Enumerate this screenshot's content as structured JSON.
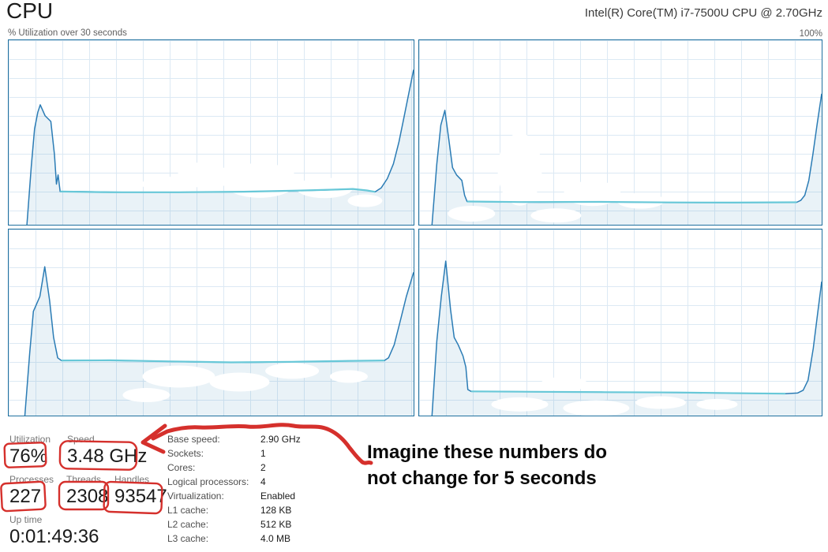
{
  "header": {
    "title": "CPU",
    "cpu_model": "Intel(R) Core(TM) i7-7500U CPU @ 2.70GHz"
  },
  "graphs": {
    "axis_label": "% Utilization over 30 seconds",
    "max_label": "100%"
  },
  "chart_data": [
    {
      "type": "area",
      "title": "logical processor 1 utilization",
      "x_window_seconds": 30,
      "ylim": [
        0,
        100
      ],
      "grid": true,
      "points": [
        [
          4.5,
          0
        ],
        [
          5.6,
          32
        ],
        [
          6.4,
          52
        ],
        [
          7.2,
          61
        ],
        [
          7.8,
          65
        ],
        [
          9.0,
          59
        ],
        [
          10.4,
          56
        ],
        [
          11.3,
          38
        ],
        [
          11.8,
          22
        ],
        [
          12.2,
          27
        ],
        [
          12.7,
          18
        ],
        [
          17,
          18
        ],
        [
          28,
          17.6
        ],
        [
          42,
          17.6
        ],
        [
          56,
          17.8
        ],
        [
          68,
          18.3
        ],
        [
          78,
          18.8
        ],
        [
          85,
          19.4
        ],
        [
          88.5,
          18.6
        ],
        [
          90.5,
          17.8
        ],
        [
          92,
          20
        ],
        [
          93.5,
          25
        ],
        [
          95,
          33
        ],
        [
          96.4,
          45
        ],
        [
          97.6,
          58
        ],
        [
          98.8,
          71
        ],
        [
          100,
          84
        ]
      ],
      "cyan_points": [
        [
          12.7,
          18
        ],
        [
          25,
          17.6
        ],
        [
          42,
          17.6
        ],
        [
          58,
          17.9
        ],
        [
          70,
          18.4
        ],
        [
          80,
          19
        ],
        [
          85,
          19.4
        ],
        [
          88.5,
          18.6
        ],
        [
          90.5,
          17.8
        ]
      ],
      "smudges": [
        [
          62,
          24,
          48,
          22
        ],
        [
          78,
          20,
          36,
          13
        ],
        [
          48,
          27,
          32,
          16
        ],
        [
          88,
          13,
          22,
          8
        ],
        [
          38,
          22,
          26,
          10
        ]
      ]
    },
    {
      "type": "area",
      "title": "logical processor 2 utilization",
      "x_window_seconds": 30,
      "ylim": [
        0,
        100
      ],
      "grid": true,
      "points": [
        [
          3.2,
          0
        ],
        [
          4.4,
          33
        ],
        [
          5.4,
          54
        ],
        [
          6.4,
          62
        ],
        [
          7.5,
          44
        ],
        [
          8.3,
          31
        ],
        [
          9.3,
          27
        ],
        [
          10.6,
          24
        ],
        [
          11.3,
          16
        ],
        [
          11.9,
          12.6
        ],
        [
          18,
          12.4
        ],
        [
          30,
          12.2
        ],
        [
          45,
          12.4
        ],
        [
          60,
          12.1
        ],
        [
          75,
          12.0
        ],
        [
          87,
          12.1
        ],
        [
          93.8,
          12.2
        ],
        [
          94.8,
          13.2
        ],
        [
          95.8,
          16
        ],
        [
          96.8,
          24
        ],
        [
          97.8,
          38
        ],
        [
          98.9,
          55
        ],
        [
          100,
          71
        ]
      ],
      "cyan_points": [
        [
          11.9,
          12.6
        ],
        [
          25,
          12.3
        ],
        [
          45,
          12.4
        ],
        [
          62,
          12.1
        ],
        [
          78,
          12.0
        ],
        [
          93.8,
          12.2
        ]
      ],
      "smudges": [
        [
          25,
          30,
          28,
          46
        ],
        [
          43,
          17,
          36,
          16
        ],
        [
          13,
          6,
          30,
          10
        ],
        [
          34,
          5,
          32,
          9
        ],
        [
          55,
          13,
          30,
          10
        ]
      ]
    },
    {
      "type": "area",
      "title": "logical processor 3 utilization",
      "x_window_seconds": 30,
      "ylim": [
        0,
        100
      ],
      "grid": true,
      "points": [
        [
          4.0,
          0
        ],
        [
          5.2,
          34
        ],
        [
          6.1,
          56
        ],
        [
          6.9,
          60
        ],
        [
          7.7,
          64
        ],
        [
          8.9,
          80
        ],
        [
          10.1,
          62
        ],
        [
          11.1,
          42
        ],
        [
          12.1,
          31
        ],
        [
          13.0,
          29.6
        ],
        [
          20,
          29.8
        ],
        [
          32,
          29.4
        ],
        [
          46,
          28.8
        ],
        [
          58,
          28.5
        ],
        [
          72,
          29.0
        ],
        [
          84,
          29.4
        ],
        [
          92.8,
          29.6
        ],
        [
          93.8,
          31
        ],
        [
          95.2,
          38
        ],
        [
          96.6,
          50
        ],
        [
          98.2,
          64
        ],
        [
          100,
          77
        ]
      ],
      "cyan_points": [
        [
          13.0,
          29.6
        ],
        [
          25,
          29.7
        ],
        [
          40,
          29.1
        ],
        [
          55,
          28.6
        ],
        [
          70,
          28.9
        ],
        [
          85,
          29.4
        ],
        [
          92.8,
          29.6
        ]
      ],
      "smudges": [
        [
          42,
          21,
          46,
          14
        ],
        [
          57,
          18,
          38,
          12
        ],
        [
          70,
          24,
          34,
          10
        ],
        [
          34,
          11,
          30,
          9
        ],
        [
          84,
          21,
          24,
          8
        ]
      ]
    },
    {
      "type": "area",
      "title": "logical processor 4 utilization",
      "x_window_seconds": 30,
      "ylim": [
        0,
        100
      ],
      "grid": true,
      "points": [
        [
          3.2,
          0
        ],
        [
          4.4,
          40
        ],
        [
          5.5,
          64
        ],
        [
          6.6,
          83
        ],
        [
          7.8,
          57
        ],
        [
          8.7,
          42
        ],
        [
          9.7,
          38
        ],
        [
          10.9,
          32
        ],
        [
          11.6,
          26
        ],
        [
          12.1,
          14
        ],
        [
          12.9,
          13.0
        ],
        [
          22,
          12.9
        ],
        [
          36,
          12.7
        ],
        [
          52,
          12.5
        ],
        [
          68,
          12.3
        ],
        [
          82,
          12.0
        ],
        [
          91,
          11.8
        ],
        [
          94,
          12.1
        ],
        [
          95.4,
          13.6
        ],
        [
          96.6,
          19
        ],
        [
          97.9,
          36
        ],
        [
          99.0,
          55
        ],
        [
          100,
          72
        ]
      ],
      "cyan_points": [
        [
          12.9,
          13.0
        ],
        [
          28,
          12.8
        ],
        [
          46,
          12.6
        ],
        [
          64,
          12.4
        ],
        [
          80,
          12.0
        ],
        [
          91,
          11.8
        ]
      ],
      "smudges": [
        [
          25,
          6,
          36,
          9
        ],
        [
          44,
          4,
          42,
          10
        ],
        [
          60,
          7,
          32,
          8
        ],
        [
          36,
          17,
          30,
          9
        ],
        [
          74,
          6,
          26,
          7
        ]
      ]
    }
  ],
  "stats": {
    "utilization": {
      "label": "Utilization",
      "value": "76%"
    },
    "speed": {
      "label": "Speed",
      "value": "3.48 GHz"
    },
    "processes": {
      "label": "Processes",
      "value": "227"
    },
    "threads": {
      "label": "Threads",
      "value": "2308"
    },
    "handles": {
      "label": "Handles",
      "value": "93547"
    },
    "uptime": {
      "label": "Up time",
      "value": "0:01:49:36"
    }
  },
  "details": {
    "rows": [
      {
        "label": "Base speed:",
        "value": "2.90 GHz"
      },
      {
        "label": "Sockets:",
        "value": "1"
      },
      {
        "label": "Cores:",
        "value": "2"
      },
      {
        "label": "Logical processors:",
        "value": "4"
      },
      {
        "label": "Virtualization:",
        "value": "Enabled"
      },
      {
        "label": "L1 cache:",
        "value": "128 KB"
      },
      {
        "label": "L2 cache:",
        "value": "512 KB"
      },
      {
        "label": "L3 cache:",
        "value": "4.0 MB"
      }
    ]
  },
  "annotation": {
    "line1": "Imagine these numbers do",
    "line2": "not change for 5 seconds"
  },
  "colors": {
    "graph_border": "#20719f",
    "grid_line": "#dce9f4",
    "line": "#2b7cb5",
    "area_fill": "rgba(43,124,181,0.10)",
    "cyan_line": "#68c8d8",
    "annotation_red": "#d5302c",
    "label_gray": "#767676",
    "text_dark": "#1a1a1a"
  }
}
